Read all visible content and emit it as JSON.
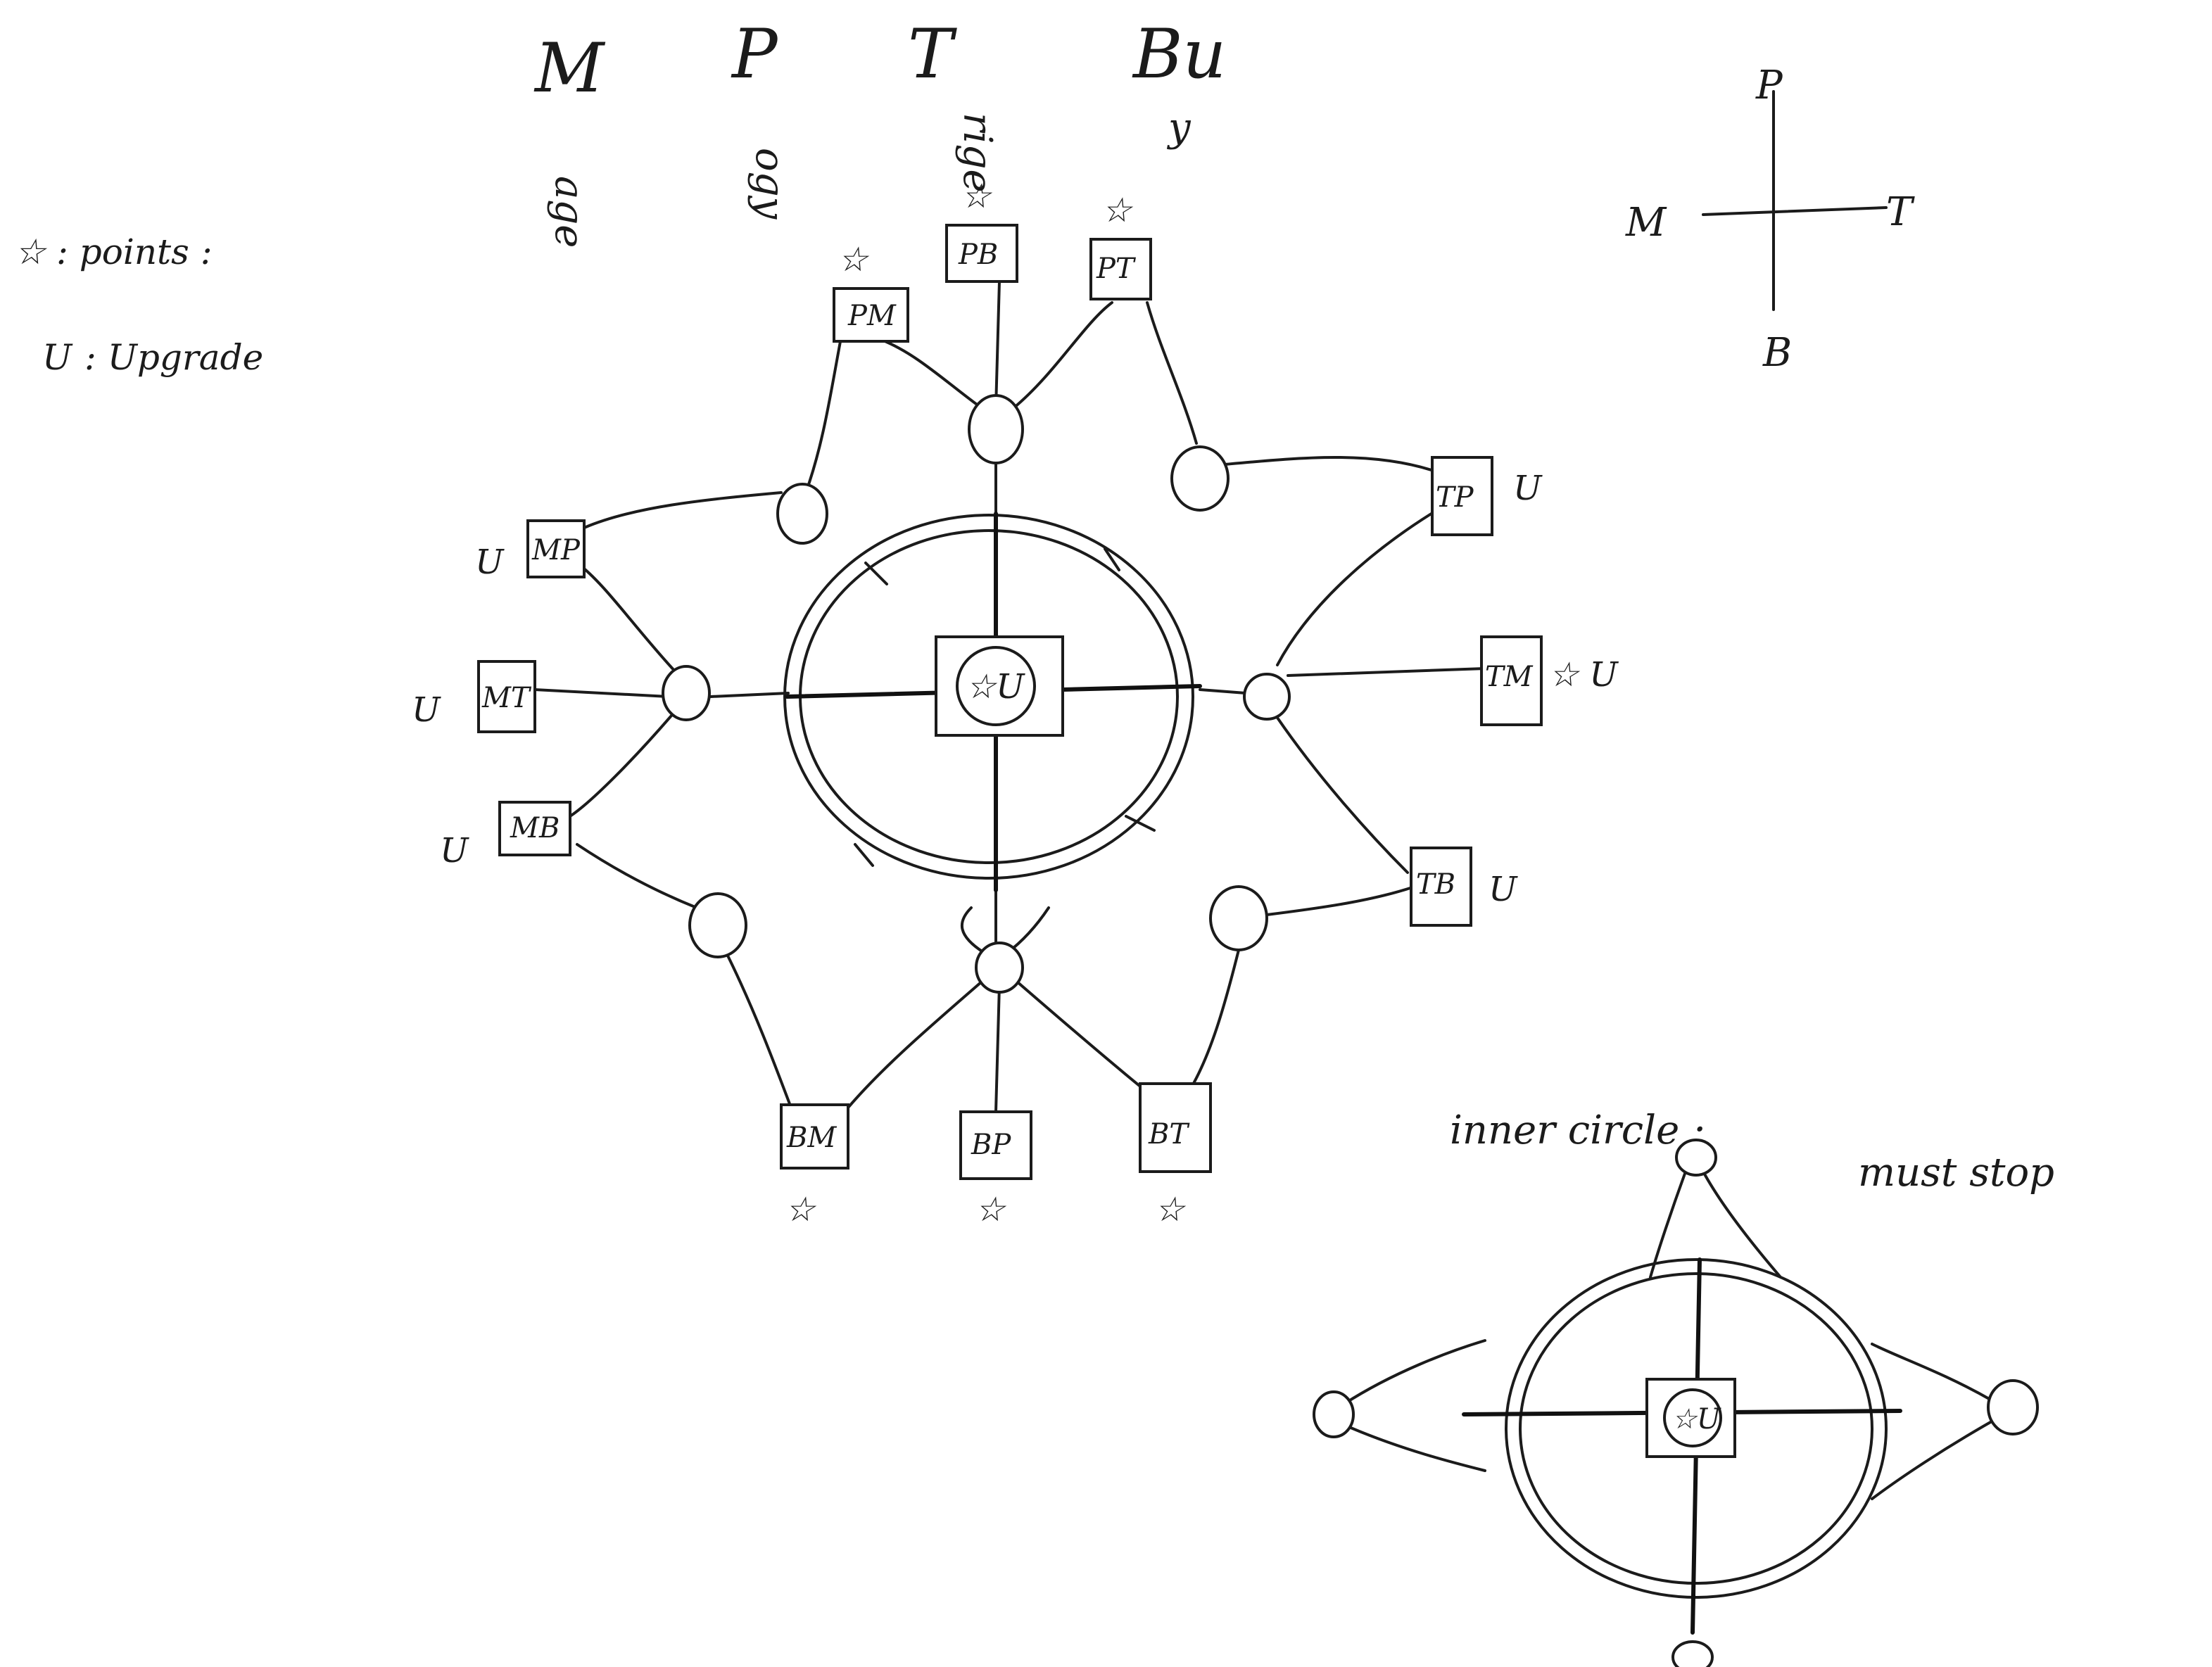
{
  "top_labels": [
    {
      "letter": "M",
      "rest": "age"
    },
    {
      "letter": "P",
      "rest": "ogy"
    },
    {
      "letter": "T",
      "rest": "rige"
    },
    {
      "letter": "Bu",
      "rest": "y"
    }
  ],
  "legend": {
    "star_symbol": "☆",
    "star_text": ": points :",
    "u_symbol": "U",
    "u_text": ": Upgrade"
  },
  "compass": {
    "north": "P",
    "south": "B",
    "west": "M",
    "east": "T"
  },
  "main_center": {
    "text": "☆U"
  },
  "boxes": [
    {
      "id": "PM",
      "label": "PM",
      "marker": "☆"
    },
    {
      "id": "PB",
      "label": "PB",
      "marker": "☆"
    },
    {
      "id": "PT",
      "label": "PT",
      "marker": "☆"
    },
    {
      "id": "MP",
      "label": "MP",
      "marker": "U"
    },
    {
      "id": "MT",
      "label": "MT",
      "marker": "U"
    },
    {
      "id": "MB",
      "label": "MB",
      "marker": "U"
    },
    {
      "id": "TP",
      "label": "TP",
      "marker": "U"
    },
    {
      "id": "TM",
      "label": "TM",
      "marker": "☆ U"
    },
    {
      "id": "TB",
      "label": "TB",
      "marker": "U"
    },
    {
      "id": "BM",
      "label": "BM",
      "marker": "☆"
    },
    {
      "id": "BP",
      "label": "BP",
      "marker": "☆"
    },
    {
      "id": "BT",
      "label": "BT",
      "marker": "☆"
    }
  ],
  "inner_note": {
    "line1": "inner circle :",
    "line2": "must stop"
  },
  "small_center": {
    "text": "☆U"
  }
}
